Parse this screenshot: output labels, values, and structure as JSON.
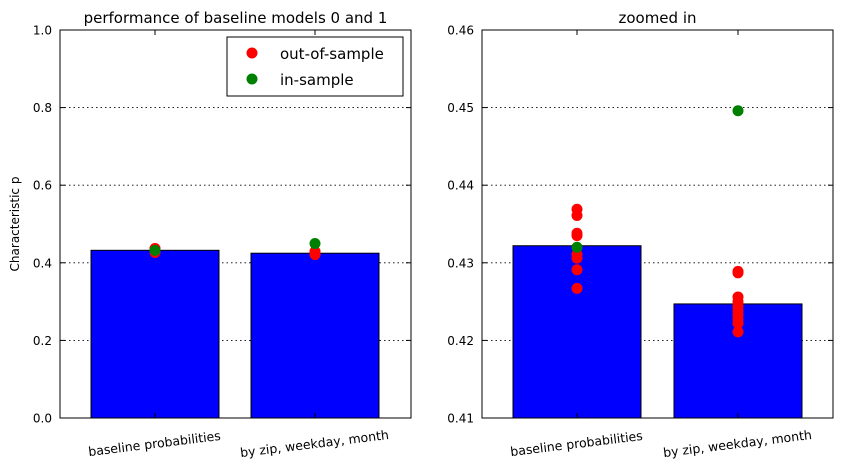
{
  "colors": {
    "bar": "#0000ff",
    "out_of_sample": "#ff0000",
    "in_sample": "#008000"
  },
  "legend": {
    "placement": "top-right of left chart",
    "entries": [
      {
        "label": "out-of-sample",
        "color": "#ff0000"
      },
      {
        "label": "in-sample",
        "color": "#008000"
      }
    ]
  },
  "chart_data": [
    {
      "type": "bar",
      "title": "performance of baseline models 0 and 1",
      "ylabel": "Characteristic p",
      "xlabel": "",
      "categories": [
        "baseline probabilities",
        "by zip, weekday, month"
      ],
      "values": [
        0.4322,
        0.4247
      ],
      "ylim": [
        0.0,
        1.0
      ],
      "yticks": [
        "0.0",
        "0.2",
        "0.4",
        "0.6",
        "0.8",
        "1.0"
      ],
      "grid": "horizontal dotted",
      "points": {
        "out_of_sample": [
          [
            0.4369,
            0.4361,
            0.4338,
            0.4335,
            0.4311,
            0.4306,
            0.4291,
            0.4267
          ],
          [
            0.4289,
            0.4287,
            0.4256,
            0.425,
            0.4244,
            0.4238,
            0.4233,
            0.4227,
            0.4222,
            0.4211
          ]
        ],
        "in_sample": [
          0.432,
          0.4496
        ]
      }
    },
    {
      "type": "bar",
      "title": "zoomed in",
      "ylabel": "",
      "xlabel": "",
      "categories": [
        "baseline probabilities",
        "by zip, weekday, month"
      ],
      "values": [
        0.4322,
        0.4247
      ],
      "ylim": [
        0.41,
        0.46
      ],
      "yticks": [
        "0.41",
        "0.42",
        "0.43",
        "0.44",
        "0.45",
        "0.46"
      ],
      "grid": "horizontal dotted",
      "points": {
        "out_of_sample": [
          [
            0.4369,
            0.4361,
            0.4338,
            0.4335,
            0.4311,
            0.4306,
            0.4291,
            0.4267
          ],
          [
            0.4289,
            0.4287,
            0.4256,
            0.425,
            0.4244,
            0.4238,
            0.4233,
            0.4227,
            0.4222,
            0.4211
          ]
        ],
        "in_sample": [
          0.432,
          0.4496
        ]
      }
    }
  ]
}
